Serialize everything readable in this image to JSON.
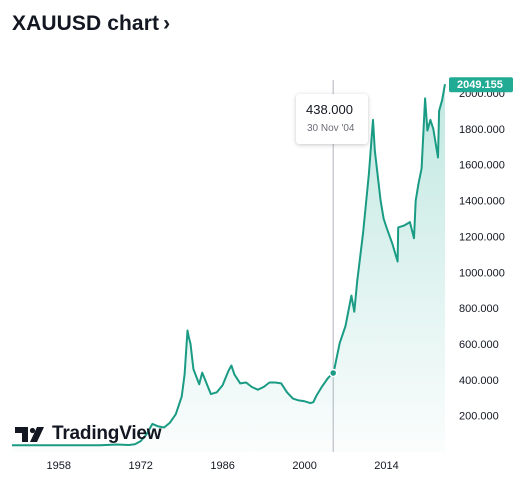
{
  "header": {
    "title": "XAUUSD chart",
    "chevron": "›"
  },
  "logo": {
    "text": "TradingView",
    "icon": "tradingview-logo-icon"
  },
  "tooltip": {
    "value": "438.000",
    "date": "30 Nov '04"
  },
  "current_price": "2049.155",
  "colors": {
    "line": "#1a9b84",
    "accent": "#22ab94",
    "fill": "#e6f4f1",
    "crosshair": "#b2b5be",
    "text": "#131722"
  },
  "chart_data": {
    "type": "area",
    "symbol": "XAUUSD",
    "x_ticks": [
      "1958",
      "1972",
      "1986",
      "2000",
      "2014"
    ],
    "y_ticks": [
      "200.000",
      "400.000",
      "600.000",
      "800.000",
      "1000.000",
      "1200.000",
      "1400.000",
      "1600.000",
      "1800.000",
      "2000.000"
    ],
    "xlim": [
      1950,
      2024
    ],
    "ylim": [
      0,
      2150
    ],
    "grid": false,
    "highlight": {
      "x": 2004.9,
      "y": 438.0,
      "label": "30 Nov '04"
    },
    "last_value": 2049.155,
    "series": [
      {
        "x": [
          1950,
          1955,
          1960,
          1965,
          1968,
          1970,
          1971,
          1972,
          1973,
          1974,
          1975,
          1976,
          1977,
          1978,
          1979,
          1979.5,
          1980.0,
          1980.2,
          1980.5,
          1981,
          1982,
          1982.5,
          1983,
          1984,
          1985,
          1986,
          1987,
          1987.5,
          1988,
          1989,
          1990,
          1991,
          1992,
          1993,
          1994,
          1995,
          1996,
          1997,
          1998,
          1999,
          2000,
          2001,
          2001.5,
          2002,
          2003,
          2004,
          2004.9,
          2005,
          2006,
          2007,
          2008,
          2008.5,
          2009,
          2010,
          2011,
          2011.7,
          2012,
          2013,
          2013.5,
          2014,
          2015,
          2015.9,
          2016,
          2017,
          2018,
          2018.7,
          2019,
          2019.5,
          2020,
          2020.6,
          2021,
          2021.5,
          2022,
          2022.8,
          2023,
          2023.5,
          2024
        ],
        "y": [
          35,
          35,
          35,
          35,
          39,
          36,
          41,
          58,
          97,
          154,
          140,
          134,
          161,
          208,
          306,
          430,
          675,
          640,
          600,
          460,
          375,
          440,
          400,
          320,
          330,
          370,
          450,
          480,
          430,
          380,
          385,
          360,
          345,
          360,
          385,
          385,
          380,
          330,
          295,
          285,
          280,
          270,
          275,
          310,
          363,
          410,
          438,
          445,
          605,
          700,
          870,
          780,
          950,
          1220,
          1550,
          1850,
          1680,
          1400,
          1300,
          1250,
          1160,
          1060,
          1250,
          1260,
          1280,
          1190,
          1400,
          1500,
          1580,
          1970,
          1790,
          1850,
          1800,
          1640,
          1900,
          1960,
          2049
        ]
      }
    ]
  }
}
